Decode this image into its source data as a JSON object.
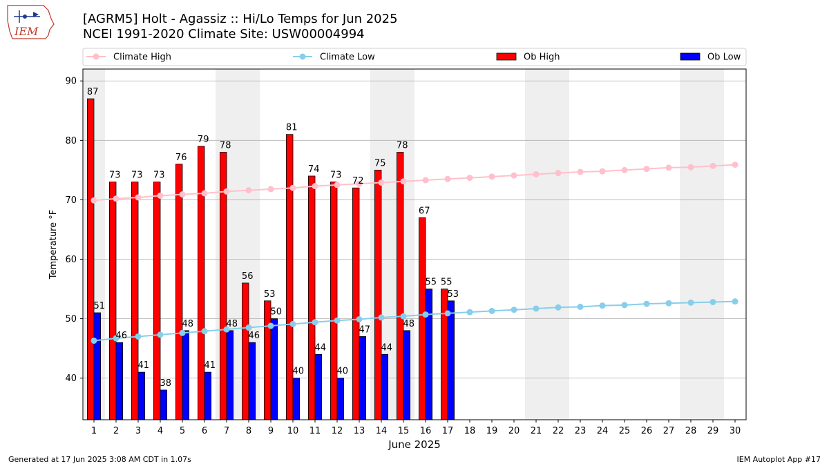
{
  "header": {
    "logo_text": "IEM",
    "title_line1": "[AGRM5] Holt - Agassiz :: Hi/Lo Temps for Jun 2025",
    "title_line2": "NCEI 1991-2020 Climate Site: USW00004994"
  },
  "footer": {
    "left": "Generated at 17 Jun 2025 3:08 AM CDT in 1.07s",
    "right": "IEM Autoplot App #17"
  },
  "chart_data": {
    "type": "bar",
    "xlabel": "June 2025",
    "ylabel": "Temperature °F",
    "ylim": [
      33,
      92
    ],
    "yticks": [
      40,
      50,
      60,
      70,
      80,
      90
    ],
    "grid": "horizontal",
    "legend_position": "top",
    "days": [
      1,
      2,
      3,
      4,
      5,
      6,
      7,
      8,
      9,
      10,
      11,
      12,
      13,
      14,
      15,
      16,
      17,
      18,
      19,
      20,
      21,
      22,
      23,
      24,
      25,
      26,
      27,
      28,
      29,
      30
    ],
    "weekend_shading": [
      [
        1,
        1
      ],
      [
        7,
        8
      ],
      [
        14,
        15
      ],
      [
        21,
        22
      ],
      [
        28,
        29
      ]
    ],
    "shading_color": "#efefef",
    "series": [
      {
        "name": "Climate High",
        "kind": "line",
        "color": "#ffc0cb",
        "values": [
          69.9,
          70.2,
          70.4,
          70.7,
          70.9,
          71.1,
          71.4,
          71.6,
          71.8,
          72.0,
          72.3,
          72.5,
          72.7,
          72.9,
          73.1,
          73.3,
          73.5,
          73.7,
          73.9,
          74.1,
          74.3,
          74.5,
          74.7,
          74.8,
          75.0,
          75.2,
          75.4,
          75.5,
          75.7,
          75.9
        ]
      },
      {
        "name": "Climate Low",
        "kind": "line",
        "color": "#87ceeb",
        "values": [
          46.3,
          46.7,
          47.0,
          47.3,
          47.6,
          47.9,
          48.2,
          48.5,
          48.8,
          49.1,
          49.4,
          49.7,
          49.9,
          50.2,
          50.4,
          50.7,
          50.9,
          51.1,
          51.3,
          51.5,
          51.7,
          51.9,
          52.0,
          52.2,
          52.3,
          52.5,
          52.6,
          52.7,
          52.8,
          52.9
        ]
      },
      {
        "name": "Ob High",
        "kind": "bar",
        "color": "#ff0000",
        "values": [
          87,
          73,
          73,
          73,
          76,
          79,
          78,
          56,
          53,
          81,
          74,
          73,
          72,
          75,
          78,
          67,
          55
        ]
      },
      {
        "name": "Ob Low",
        "kind": "bar",
        "color": "#0000ff",
        "values": [
          51,
          46,
          41,
          38,
          48,
          41,
          48,
          46,
          50,
          40,
          44,
          40,
          47,
          44,
          48,
          55,
          53
        ]
      }
    ]
  }
}
